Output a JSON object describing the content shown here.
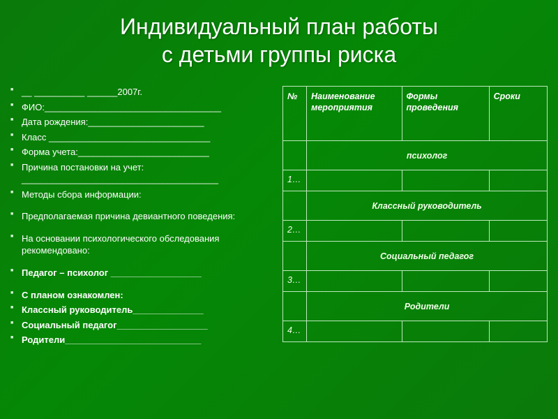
{
  "title_line1": "Индивидуальный план работы",
  "title_line2": "с детьми группы риска",
  "left_items": [
    {
      "text": "__ __________ ______2007г.",
      "bold": false,
      "bullet": true,
      "gap": false
    },
    {
      "text": "ФИО:___________________________________",
      "bold": false,
      "bullet": true,
      "gap": false
    },
    {
      "text": "Дата рождения:_______________________",
      "bold": false,
      "bullet": true,
      "gap": false
    },
    {
      "text": "Класс ________________________________",
      "bold": false,
      "bullet": true,
      "gap": false
    },
    {
      "text": "Форма учета:__________________________",
      "bold": false,
      "bullet": true,
      "gap": false
    },
    {
      "text": "Причина постановки на учет: _______________________________________",
      "bold": false,
      "bullet": true,
      "gap": false
    },
    {
      "text": "Методы сбора информации:",
      "bold": false,
      "bullet": true,
      "gap": true
    },
    {
      "text": "Предполагаемая причина девиантного поведения:",
      "bold": false,
      "bullet": true,
      "gap": true
    },
    {
      "text": "На основании психологического обследования рекомендовано:",
      "bold": false,
      "bullet": true,
      "gap": true
    },
    {
      "text": " ",
      "bold": false,
      "bullet": false,
      "gap": false
    },
    {
      "text": "Педагог – психолог __________________",
      "bold": true,
      "bullet": true,
      "gap": true
    },
    {
      "text": "С планом ознакомлен:",
      "bold": true,
      "bullet": true,
      "gap": false
    },
    {
      "text": "Классный руководитель______________",
      "bold": true,
      "bullet": true,
      "gap": false
    },
    {
      "text": "Социальный педагог__________________",
      "bold": true,
      "bullet": true,
      "gap": false
    },
    {
      "text": "Родители___________________________",
      "bold": true,
      "bullet": true,
      "gap": false
    }
  ],
  "table": {
    "headers": {
      "num": "№",
      "name": "Наименование мероприятия",
      "form": "Формы проведения",
      "time": "Сроки"
    },
    "sections": [
      {
        "label": "психолог",
        "row_num": "1…"
      },
      {
        "label": "Классный руководитель",
        "row_num": "2…"
      },
      {
        "label": "Социальный педагог",
        "row_num": "3…"
      },
      {
        "label": "Родители",
        "row_num": "4…"
      }
    ]
  }
}
